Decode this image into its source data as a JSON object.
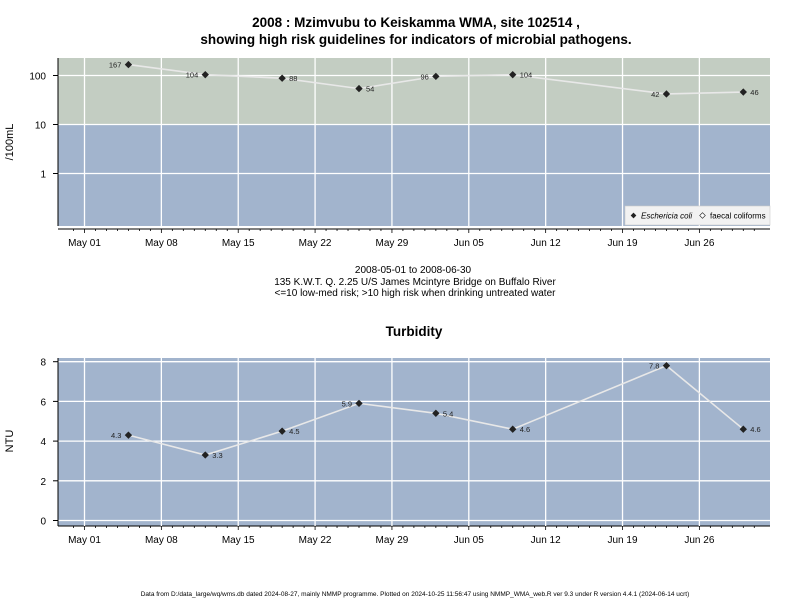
{
  "title_line1": "2008 : Mzimvubu to Keiskamma WMA, site 102514 ,",
  "title_line2": "showing high risk guidelines for indicators of microbial pathogens.",
  "subtitle_line1": "2008-05-01 to 2008-06-30",
  "subtitle_line2": "135 K.W.T. Q. 2.25 U/S James Mcintyre Bridge on Buffalo River",
  "subtitle_line3": "<=10 low-med risk; >10 high risk when drinking untreated water",
  "footer": "Data from D:/data_large/wq/wms.db dated 2024-08-27, mainly NMMP programme. Plotted on 2024-10-25 11:56:47 using NMMP_WMA_web.R ver 9.3 under R version 4.4.1 (2024-06-14 ucrt)",
  "x_ticks": [
    "May 01",
    "May 08",
    "May 15",
    "May 22",
    "May 29",
    "Jun 05",
    "Jun 12",
    "Jun 19",
    "Jun 26"
  ],
  "colors": {
    "high_risk": "#c3cdc2",
    "low_risk": "#a2b4cd",
    "line": "#e8e8e8",
    "marker": "#222222",
    "grid": "#ffffff"
  },
  "chart_data": [
    {
      "type": "line",
      "title": "",
      "ylabel": "/100mL",
      "yscale": "log",
      "y_ticks": [
        "1",
        "10",
        "100"
      ],
      "high_risk_threshold": 10,
      "legend": {
        "placement": "bottom-right",
        "entries": [
          "Eschericia coli",
          "faecal coliforms"
        ]
      },
      "series": [
        {
          "name": "Eschericia coli",
          "x": [
            "2008-05-05",
            "2008-05-12",
            "2008-05-19",
            "2008-05-26",
            "2008-06-02",
            "2008-06-09",
            "2008-06-23",
            "2008-06-30"
          ],
          "y": [
            167,
            104,
            88,
            54,
            96,
            104,
            42,
            46
          ],
          "labels": [
            "167",
            "104",
            "88",
            "54",
            "96",
            "104",
            "42",
            "46"
          ]
        }
      ]
    },
    {
      "type": "line",
      "title": "Turbidity",
      "ylabel": "NTU",
      "ylim": [
        0,
        8
      ],
      "y_ticks": [
        "0",
        "2",
        "4",
        "6",
        "8"
      ],
      "series": [
        {
          "x": [
            "2008-05-05",
            "2008-05-12",
            "2008-05-19",
            "2008-05-26",
            "2008-06-02",
            "2008-06-09",
            "2008-06-23",
            "2008-06-30"
          ],
          "y": [
            4.3,
            3.3,
            4.5,
            5.9,
            5.4,
            4.6,
            7.8,
            4.6
          ],
          "labels": [
            "4.3",
            "3.3",
            "4.5",
            "5.9",
            "5.4",
            "4.6",
            "7.8",
            "4.6"
          ]
        }
      ]
    }
  ]
}
